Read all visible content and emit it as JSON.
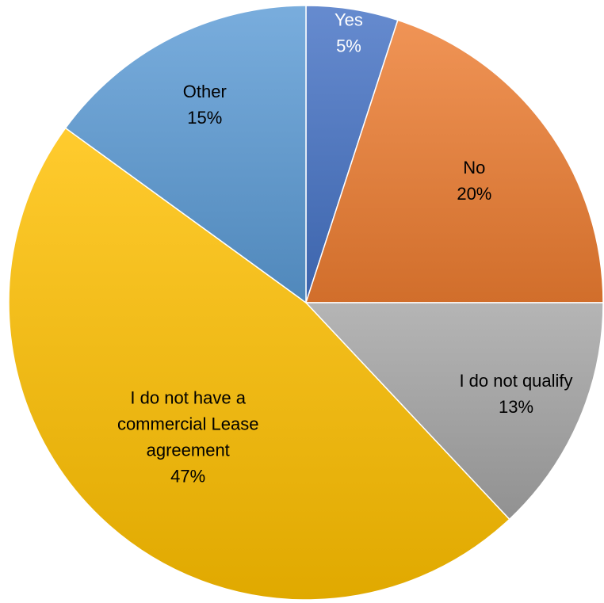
{
  "chart_data": {
    "type": "pie",
    "start_angle_deg": 0,
    "direction": "clockwise",
    "slices": [
      {
        "label": "Yes",
        "value": 5,
        "value_text": "5%",
        "color": "#4472C4",
        "label_color": "#ffffff"
      },
      {
        "label": "No",
        "value": 20,
        "value_text": "20%",
        "color": "#ED7D31",
        "label_color": "#000000"
      },
      {
        "label": "I do not qualify",
        "value": 13,
        "value_text": "13%",
        "color": "#A5A5A5",
        "label_color": "#000000"
      },
      {
        "label": "I do not have a commercial Lease agreement",
        "value": 47,
        "value_text": "47%",
        "color": "#FFC000",
        "label_color": "#000000"
      },
      {
        "label": "Other",
        "value": 15,
        "value_text": "15%",
        "color": "#5B9BD5",
        "label_color": "#000000"
      }
    ]
  }
}
